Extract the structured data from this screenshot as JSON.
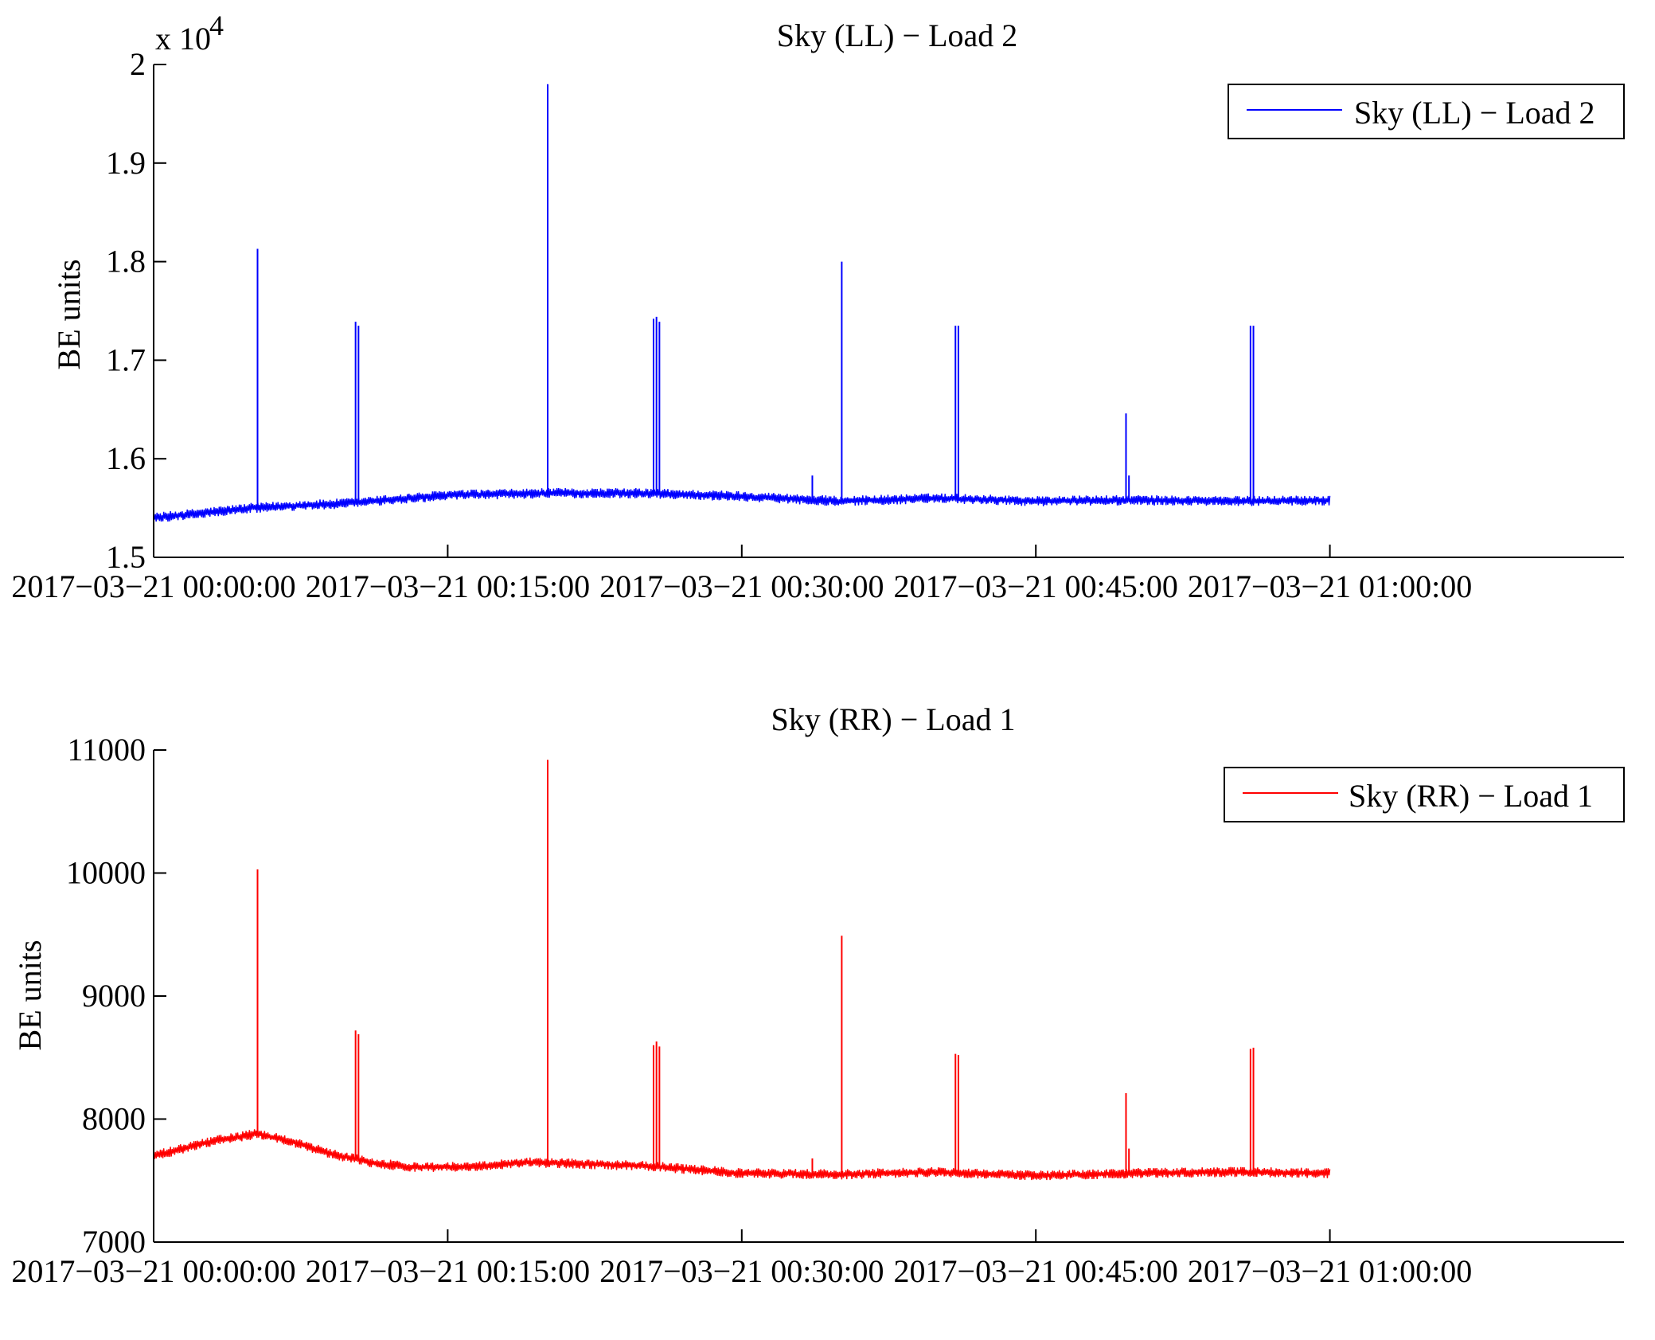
{
  "figure": {
    "background": "#ffffff"
  },
  "chart_data": [
    {
      "type": "line",
      "title": "Sky (LL) − Load 2",
      "ylabel": "BE units",
      "xlabel": "",
      "y_multiplier_label": "x 10",
      "y_multiplier_exponent": "4",
      "y_scale": 10000,
      "ylim": [
        15000,
        20000
      ],
      "yticks": [
        15000,
        16000,
        17000,
        18000,
        19000,
        20000
      ],
      "ytick_labels": [
        "1.5",
        "1.6",
        "1.7",
        "1.8",
        "1.9",
        "2"
      ],
      "xlim_minutes": [
        0,
        75
      ],
      "xticks": [
        "2017−03−21 00:00:00",
        "2017−03−21 00:15:00",
        "2017−03−21 00:30:00",
        "2017−03−21 00:45:00",
        "2017−03−21 01:00:00"
      ],
      "xtick_minutes": [
        0,
        15,
        30,
        45,
        60
      ],
      "grid": false,
      "legend_position": "top-right",
      "series": [
        {
          "name": "Sky (LL) − Load 2",
          "color": "#0000ff",
          "data_end_minute": 60,
          "noise_band": 140,
          "baseline": [
            [
              0,
              15400
            ],
            [
              5,
              15500
            ],
            [
              10,
              15550
            ],
            [
              15,
              15630
            ],
            [
              20,
              15650
            ],
            [
              25,
              15650
            ],
            [
              30,
              15620
            ],
            [
              35,
              15570
            ],
            [
              40,
              15600
            ],
            [
              45,
              15570
            ],
            [
              50,
              15580
            ],
            [
              55,
              15570
            ],
            [
              60,
              15580
            ]
          ],
          "spikes": [
            {
              "minute": 5.3,
              "value": 18130
            },
            {
              "minute": 10.3,
              "value": 17390
            },
            {
              "minute": 10.45,
              "value": 17350
            },
            {
              "minute": 20.1,
              "value": 19800
            },
            {
              "minute": 25.5,
              "value": 17420
            },
            {
              "minute": 25.65,
              "value": 17440
            },
            {
              "minute": 25.8,
              "value": 17390
            },
            {
              "minute": 33.6,
              "value": 15830
            },
            {
              "minute": 35.1,
              "value": 18000
            },
            {
              "minute": 40.9,
              "value": 17350
            },
            {
              "minute": 41.05,
              "value": 17350
            },
            {
              "minute": 49.6,
              "value": 16460
            },
            {
              "minute": 49.75,
              "value": 15830
            },
            {
              "minute": 55.95,
              "value": 17350
            },
            {
              "minute": 56.1,
              "value": 17350
            }
          ]
        }
      ]
    },
    {
      "type": "line",
      "title": "Sky (RR) − Load 1",
      "ylabel": "BE units",
      "xlabel": "",
      "ylim": [
        7000,
        11000
      ],
      "yticks": [
        7000,
        8000,
        9000,
        10000,
        11000
      ],
      "ytick_labels": [
        "7000",
        "8000",
        "9000",
        "10000",
        "11000"
      ],
      "xlim_minutes": [
        0,
        75
      ],
      "xticks": [
        "2017−03−21 00:00:00",
        "2017−03−21 00:15:00",
        "2017−03−21 00:30:00",
        "2017−03−21 00:45:00",
        "2017−03−21 01:00:00"
      ],
      "xtick_minutes": [
        0,
        15,
        30,
        45,
        60
      ],
      "grid": false,
      "legend_position": "top-right",
      "series": [
        {
          "name": "Sky (RR) − Load 1",
          "color": "#ff0000",
          "data_end_minute": 60,
          "noise_band": 110,
          "baseline": [
            [
              0,
              7700
            ],
            [
              1.5,
              7760
            ],
            [
              3,
              7820
            ],
            [
              5.3,
              7880
            ],
            [
              7,
              7820
            ],
            [
              9,
              7720
            ],
            [
              11,
              7650
            ],
            [
              13,
              7610
            ],
            [
              16,
              7610
            ],
            [
              19,
              7650
            ],
            [
              25,
              7620
            ],
            [
              30,
              7560
            ],
            [
              35,
              7550
            ],
            [
              40,
              7570
            ],
            [
              45,
              7540
            ],
            [
              50,
              7560
            ],
            [
              55,
              7570
            ],
            [
              60,
              7560
            ]
          ],
          "spikes": [
            {
              "minute": 5.3,
              "value": 10030
            },
            {
              "minute": 10.3,
              "value": 8720
            },
            {
              "minute": 10.45,
              "value": 8690
            },
            {
              "minute": 20.1,
              "value": 10920
            },
            {
              "minute": 25.5,
              "value": 8600
            },
            {
              "minute": 25.65,
              "value": 8630
            },
            {
              "minute": 25.8,
              "value": 8590
            },
            {
              "minute": 33.6,
              "value": 7680
            },
            {
              "minute": 35.1,
              "value": 9490
            },
            {
              "minute": 40.9,
              "value": 8530
            },
            {
              "minute": 41.05,
              "value": 8520
            },
            {
              "minute": 49.6,
              "value": 8210
            },
            {
              "minute": 49.75,
              "value": 7760
            },
            {
              "minute": 55.95,
              "value": 8570
            },
            {
              "minute": 56.1,
              "value": 8580
            }
          ]
        }
      ]
    }
  ]
}
